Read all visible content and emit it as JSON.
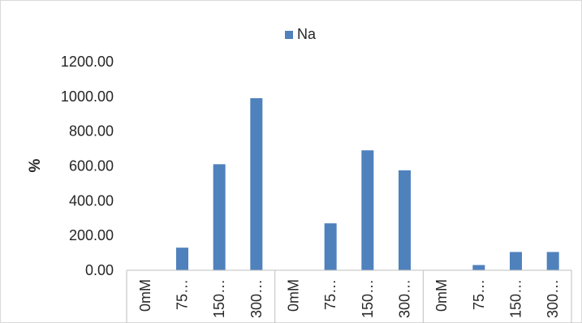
{
  "chart_data": {
    "type": "bar",
    "categories": [
      "0mM",
      "75…",
      "150…",
      "300…",
      "0mM",
      "75…",
      "150…",
      "300…",
      "0mM",
      "75…",
      "150…",
      "300…"
    ],
    "series": [
      {
        "name": "Na",
        "values": [
          0,
          130,
          610,
          990,
          0,
          270,
          690,
          575,
          0,
          30,
          105,
          105
        ]
      }
    ],
    "title": "",
    "xlabel": "",
    "ylabel": "%",
    "ylim": [
      0,
      1200
    ],
    "y_ticks": [
      "0.00",
      "200.00",
      "400.00",
      "600.00",
      "800.00",
      "1000.00",
      "1200.00"
    ],
    "grid": false,
    "legend_position": "top",
    "colors": {
      "bar": "#4f81bd",
      "axis": "#bfbfbf",
      "text": "#262626"
    }
  }
}
